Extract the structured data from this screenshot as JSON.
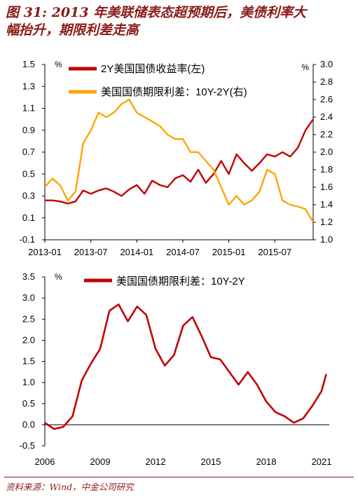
{
  "figure": {
    "title_line1": "图 31: 2013 年美联储表态超预期后，美债利率大",
    "title_line2": "幅抬升，期限利差走高",
    "source": "资料来源：Wind，中金公司研究"
  },
  "colors": {
    "red": "#c00000",
    "orange": "#ffa500",
    "title": "#8b1a1a"
  },
  "chart_data": [
    {
      "type": "line",
      "x_ticks": [
        "2013-01",
        "2013-07",
        "2014-01",
        "2014-07",
        "2015-01",
        "2015-07"
      ],
      "x_range": [
        "2013-01",
        "2015-12"
      ],
      "left_axis": {
        "unit": "%",
        "ylim": [
          -0.1,
          1.5
        ],
        "ticks": [
          "1.5",
          "1.3",
          "1.1",
          "0.9",
          "0.7",
          "0.5",
          "0.3",
          "0.1",
          "-0.1"
        ]
      },
      "right_axis": {
        "unit": "%",
        "ylim": [
          1.0,
          3.0
        ],
        "ticks": [
          "3.0",
          "2.8",
          "2.6",
          "2.4",
          "2.2",
          "2.0",
          "1.8",
          "1.6",
          "1.4",
          "1.2",
          "1.0"
        ]
      },
      "legend_position": "top",
      "grid": false,
      "series": [
        {
          "name": "2Y美国国债收益率(左)",
          "axis": "left",
          "color": "#c00000",
          "x": [
            "2013-01",
            "2013-02",
            "2013-03",
            "2013-04",
            "2013-05",
            "2013-06",
            "2013-07",
            "2013-08",
            "2013-09",
            "2013-10",
            "2013-11",
            "2013-12",
            "2014-01",
            "2014-02",
            "2014-03",
            "2014-04",
            "2014-05",
            "2014-06",
            "2014-07",
            "2014-08",
            "2014-09",
            "2014-10",
            "2014-11",
            "2014-12",
            "2015-01",
            "2015-02",
            "2015-03",
            "2015-04",
            "2015-05",
            "2015-06",
            "2015-07",
            "2015-08",
            "2015-09",
            "2015-10",
            "2015-11",
            "2015-12"
          ],
          "y": [
            0.26,
            0.26,
            0.25,
            0.23,
            0.25,
            0.35,
            0.32,
            0.35,
            0.37,
            0.34,
            0.3,
            0.36,
            0.4,
            0.32,
            0.44,
            0.4,
            0.38,
            0.46,
            0.49,
            0.43,
            0.54,
            0.42,
            0.5,
            0.62,
            0.5,
            0.68,
            0.6,
            0.53,
            0.6,
            0.68,
            0.66,
            0.7,
            0.66,
            0.74,
            0.9,
            1.0
          ]
        },
        {
          "name": "美国国债期限利差：10Y-2Y(右)",
          "axis": "right",
          "color": "#ffa500",
          "x": [
            "2013-01",
            "2013-02",
            "2013-03",
            "2013-04",
            "2013-05",
            "2013-06",
            "2013-07",
            "2013-08",
            "2013-09",
            "2013-10",
            "2013-11",
            "2013-12",
            "2014-01",
            "2014-02",
            "2014-03",
            "2014-04",
            "2014-05",
            "2014-06",
            "2014-07",
            "2014-08",
            "2014-09",
            "2014-10",
            "2014-11",
            "2014-12",
            "2015-01",
            "2015-02",
            "2015-03",
            "2015-04",
            "2015-05",
            "2015-06",
            "2015-07",
            "2015-08",
            "2015-09",
            "2015-10",
            "2015-11",
            "2015-12"
          ],
          "y": [
            1.6,
            1.7,
            1.62,
            1.45,
            1.55,
            2.1,
            2.25,
            2.45,
            2.4,
            2.45,
            2.55,
            2.6,
            2.45,
            2.4,
            2.35,
            2.3,
            2.2,
            2.15,
            2.15,
            2.0,
            2.0,
            1.9,
            1.8,
            1.6,
            1.4,
            1.5,
            1.4,
            1.45,
            1.55,
            1.8,
            1.75,
            1.45,
            1.4,
            1.38,
            1.35,
            1.2
          ]
        }
      ]
    },
    {
      "type": "line",
      "x_ticks": [
        "2006",
        "2009",
        "2012",
        "2015",
        "2018",
        "2021"
      ],
      "x_range": [
        "2006-01",
        "2021-06"
      ],
      "ylim": [
        -0.5,
        3.5
      ],
      "y_ticks": [
        "3.5",
        "3.0",
        "2.5",
        "2.0",
        "1.5",
        "1.0",
        "0.5",
        "0.0",
        "-0.5"
      ],
      "y_unit": "%",
      "legend_position": "top",
      "grid": false,
      "series": [
        {
          "name": "美国国债期限利差：10Y-2Y",
          "color": "#c00000",
          "x": [
            "2006-01",
            "2006-07",
            "2007-01",
            "2007-07",
            "2008-01",
            "2008-07",
            "2009-01",
            "2009-07",
            "2010-01",
            "2010-07",
            "2011-01",
            "2011-07",
            "2012-01",
            "2012-07",
            "2013-01",
            "2013-07",
            "2014-01",
            "2014-07",
            "2015-01",
            "2015-07",
            "2016-01",
            "2016-07",
            "2017-01",
            "2017-07",
            "2018-01",
            "2018-07",
            "2019-01",
            "2019-07",
            "2020-01",
            "2020-07",
            "2021-01",
            "2021-04"
          ],
          "y": [
            0.05,
            -0.1,
            -0.05,
            0.2,
            1.05,
            1.45,
            1.8,
            2.7,
            2.85,
            2.45,
            2.8,
            2.6,
            1.8,
            1.4,
            1.65,
            2.35,
            2.55,
            2.1,
            1.6,
            1.55,
            1.25,
            0.95,
            1.25,
            0.95,
            0.55,
            0.3,
            0.2,
            0.05,
            0.15,
            0.45,
            0.8,
            1.2
          ]
        }
      ]
    }
  ]
}
